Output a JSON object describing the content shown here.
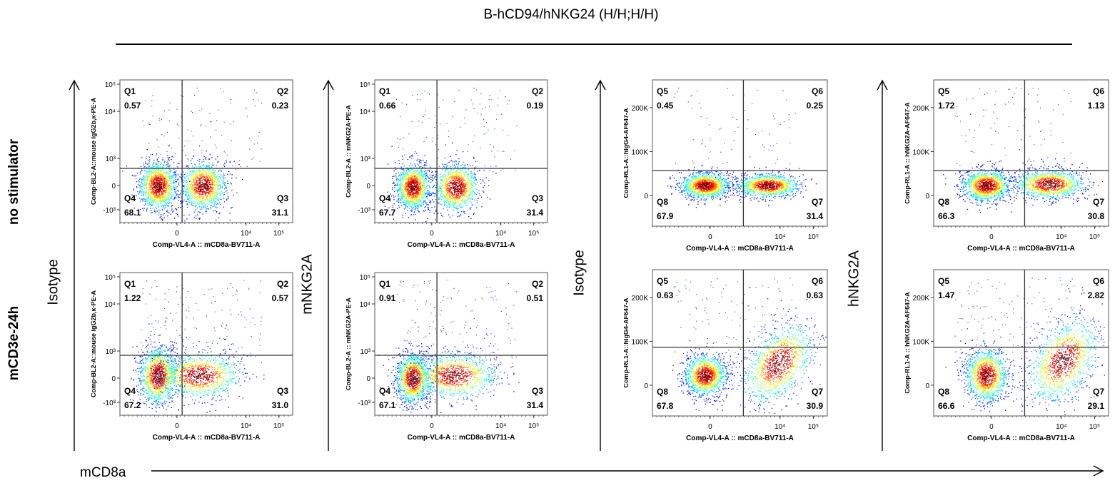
{
  "title": "B-hCD94/hNKG24 (H/H;H/H)",
  "row_labels": [
    "no stimulator",
    "mCD3e-24h"
  ],
  "column_labels": [
    "Isotype",
    "mNKG2A",
    "Isotype",
    "hNKG2A"
  ],
  "x_axis_main_label": "mCD8a",
  "chart_data": [
    {
      "type": "scatter",
      "row": "no stimulator",
      "column": "Isotype",
      "ylabel": "Comp-BL2-A::mouse IgG2b,κ-PE-A",
      "xlabel": "Comp-VL4-A :: mCD8a-BV711-A",
      "y_scale": "log",
      "quadrants": [
        {
          "name": "Q1",
          "value": "0.57"
        },
        {
          "name": "Q2",
          "value": "0.23"
        },
        {
          "name": "Q3",
          "value": "31.1"
        },
        {
          "name": "Q4",
          "value": "68.1"
        }
      ]
    },
    {
      "type": "scatter",
      "row": "no stimulator",
      "column": "mNKG2A",
      "ylabel": "Comp-BL2-A :: mNKG2A-PE-A",
      "xlabel": "Comp-VL4-A :: mCD8a-BV711-A",
      "y_scale": "log",
      "quadrants": [
        {
          "name": "Q1",
          "value": "0.66"
        },
        {
          "name": "Q2",
          "value": "0.19"
        },
        {
          "name": "Q3",
          "value": "31.4"
        },
        {
          "name": "Q4",
          "value": "67.7"
        }
      ]
    },
    {
      "type": "scatter",
      "row": "no stimulator",
      "column": "Isotype",
      "ylabel": "Comp-RL1-A::hIgG4-AF647-A",
      "xlabel": "Comp-VL4-A :: mCD8a-BV711-A",
      "y_scale": "linear",
      "quadrants": [
        {
          "name": "Q5",
          "value": "0.45"
        },
        {
          "name": "Q6",
          "value": "0.25"
        },
        {
          "name": "Q7",
          "value": "31.4"
        },
        {
          "name": "Q8",
          "value": "67.9"
        }
      ]
    },
    {
      "type": "scatter",
      "row": "no stimulator",
      "column": "hNKG2A",
      "ylabel": "Comp-RL1-A :: hNKG2A-AF647-A",
      "xlabel": "Comp-VL4-A :: mCD8a-BV711-A",
      "y_scale": "linear",
      "quadrants": [
        {
          "name": "Q5",
          "value": "1.72"
        },
        {
          "name": "Q6",
          "value": "1.13"
        },
        {
          "name": "Q7",
          "value": "30.8"
        },
        {
          "name": "Q8",
          "value": "66.3"
        }
      ]
    },
    {
      "type": "scatter",
      "row": "mCD3e-24h",
      "column": "Isotype",
      "ylabel": "Comp-BL2-A::mouse IgG2b,κ-PE-A",
      "xlabel": "Comp-VL4-A :: mCD8a-BV711-A",
      "y_scale": "log",
      "quadrants": [
        {
          "name": "Q1",
          "value": "1.22"
        },
        {
          "name": "Q2",
          "value": "0.57"
        },
        {
          "name": "Q3",
          "value": "31.0"
        },
        {
          "name": "Q4",
          "value": "67.2"
        }
      ]
    },
    {
      "type": "scatter",
      "row": "mCD3e-24h",
      "column": "mNKG2A",
      "ylabel": "Comp-BL2-A :: mNKG2A-PE-A",
      "xlabel": "Comp-VL4-A :: mCD8a-BV711-A",
      "y_scale": "log",
      "quadrants": [
        {
          "name": "Q1",
          "value": "0.91"
        },
        {
          "name": "Q2",
          "value": "0.51"
        },
        {
          "name": "Q3",
          "value": "31.4"
        },
        {
          "name": "Q4",
          "value": "67.1"
        }
      ]
    },
    {
      "type": "scatter",
      "row": "mCD3e-24h",
      "column": "Isotype",
      "ylabel": "Comp-RL1-A::hIgG4-AF647-A",
      "xlabel": "Comp-VL4-A :: mCD8a-BV711-A",
      "y_scale": "linear",
      "quadrants": [
        {
          "name": "Q5",
          "value": "0.63"
        },
        {
          "name": "Q6",
          "value": "0.63"
        },
        {
          "name": "Q7",
          "value": "30.9"
        },
        {
          "name": "Q8",
          "value": "67.8"
        }
      ]
    },
    {
      "type": "scatter",
      "row": "mCD3e-24h",
      "column": "hNKG2A",
      "ylabel": "Comp-RL1-A :: hNKG2A-AF647-A",
      "xlabel": "Comp-VL4-A :: mCD8a-BV711-A",
      "y_scale": "linear",
      "quadrants": [
        {
          "name": "Q5",
          "value": "1.47"
        },
        {
          "name": "Q6",
          "value": "2.82"
        },
        {
          "name": "Q7",
          "value": "29.1"
        },
        {
          "name": "Q8",
          "value": "66.6"
        }
      ]
    }
  ],
  "log_y_ticks": [
    "10⁵",
    "10⁴",
    "10³",
    "0",
    "-10³"
  ],
  "lin_y_ticks": [
    "200K",
    "100K",
    "0"
  ],
  "x_ticks": [
    "0",
    "10⁴",
    "10⁵"
  ]
}
